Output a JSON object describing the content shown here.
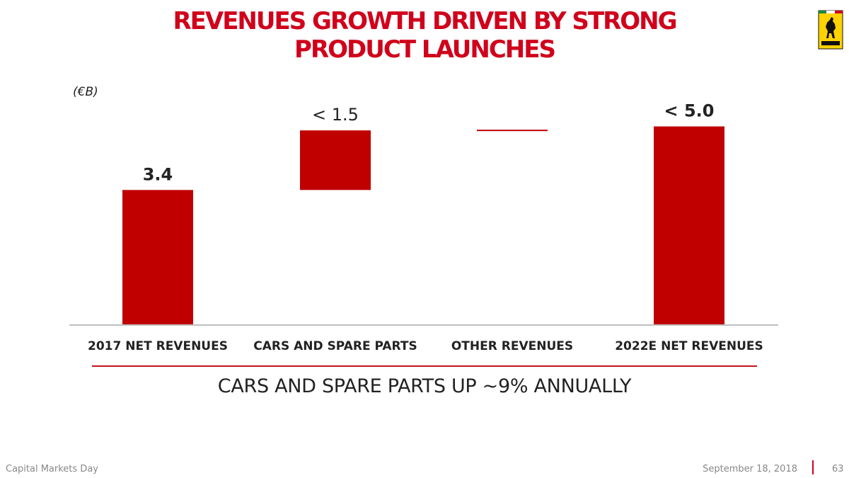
{
  "slide": {
    "title_line1": "REVENUES GROWTH DRIVEN BY STRONG",
    "title_line2": "PRODUCT LAUNCHES",
    "unit_label": "(€B)",
    "subtitle": "CARS AND SPARE PARTS UP ~9% ANNUALLY",
    "logo_text": "FERRARI"
  },
  "footer": {
    "event": "Capital Markets Day",
    "date": "September 18, 2018",
    "page": "63"
  },
  "colors": {
    "bar": "#c00000",
    "title": "#d0021b",
    "logo_bg": "#ffd200"
  },
  "chart_data": {
    "type": "bar",
    "subtype": "waterfall",
    "categories": [
      "2017 NET REVENUES",
      "CARS AND SPARE PARTS",
      "OTHER REVENUES",
      "2022E NET REVENUES"
    ],
    "bars": [
      {
        "category": "2017 NET REVENUES",
        "kind": "total",
        "value": 3.4,
        "label": "3.4"
      },
      {
        "category": "CARS AND SPARE PARTS",
        "kind": "increment",
        "value": 1.5,
        "label": "< 1.5"
      },
      {
        "category": "OTHER REVENUES",
        "kind": "increment",
        "value": 0.0,
        "label": ""
      },
      {
        "category": "2022E NET REVENUES",
        "kind": "total",
        "value": 5.0,
        "label": "< 5.0"
      }
    ],
    "ylim": [
      0,
      6.4
    ],
    "grid": false,
    "legend": "none"
  }
}
